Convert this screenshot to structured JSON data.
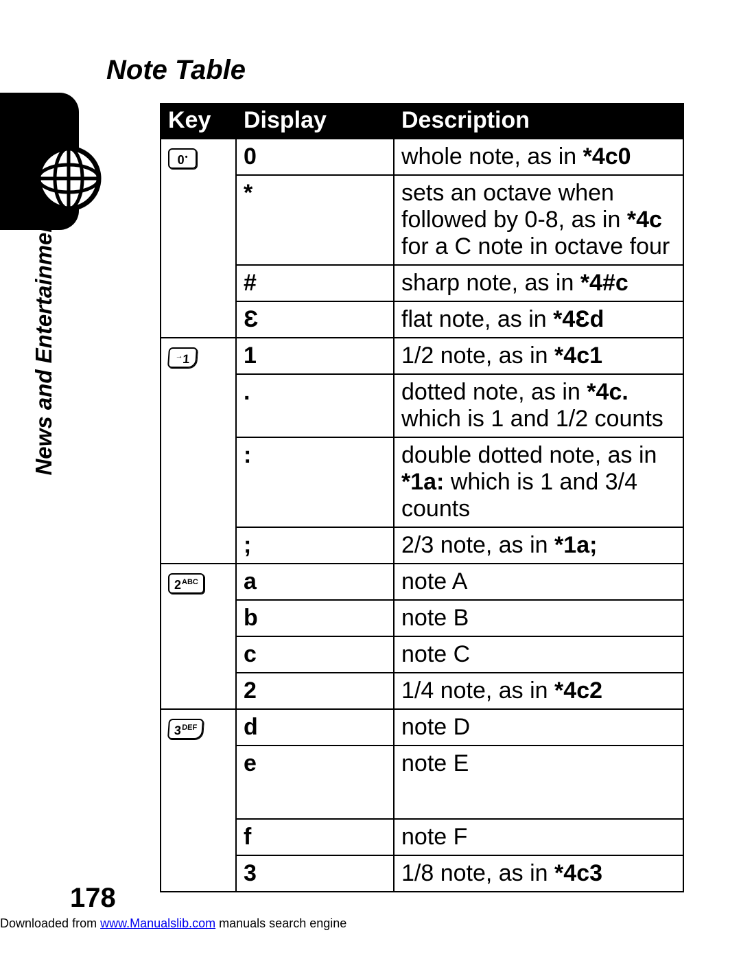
{
  "title": "Note Table",
  "sidebar_label": "News and Entertainment",
  "page_number": "178",
  "footer_prefix": "Downloaded from ",
  "footer_link_text": "www.Manualslib.com",
  "footer_suffix": " manuals search engine",
  "table": {
    "columns": [
      "Key",
      "Display",
      "Description"
    ],
    "rows": [
      {
        "key": "0",
        "key_super": "•",
        "display": "0",
        "desc_parts": [
          [
            "",
            "whole note, as in "
          ],
          [
            "b",
            "*4c0"
          ]
        ],
        "show_key": true,
        "key_style": "rect"
      },
      {
        "key": "",
        "display": "*",
        "desc_parts": [
          [
            "",
            "sets an octave when followed by 0-8, as in "
          ],
          [
            "b",
            "*4c"
          ],
          [
            "",
            " for a C note in octave four"
          ]
        ],
        "show_key": false
      },
      {
        "key": "",
        "display": "#",
        "desc_parts": [
          [
            "",
            "sharp note, as in "
          ],
          [
            "b",
            "*4#c"
          ]
        ],
        "show_key": false
      },
      {
        "key": "",
        "display": "Ɛ",
        "desc_parts": [
          [
            "",
            "flat note, as in "
          ],
          [
            "b",
            "*4Ɛd"
          ]
        ],
        "show_key": false
      },
      {
        "key": "1",
        "key_prefix": "→",
        "display": "1",
        "desc_parts": [
          [
            "",
            "1/2 note, as in "
          ],
          [
            "b",
            "*4c1"
          ]
        ],
        "show_key": true,
        "key_style": "shaped"
      },
      {
        "key": "",
        "display": ".",
        "desc_parts": [
          [
            "",
            "dotted note, as in "
          ],
          [
            "b",
            "*4c."
          ],
          [
            "",
            " which is 1 and 1/2 counts"
          ]
        ],
        "show_key": false
      },
      {
        "key": "",
        "display": ":",
        "desc_parts": [
          [
            "",
            "double dotted note, as in "
          ],
          [
            "b",
            "*1a:"
          ],
          [
            "",
            " which is 1 and 3/4 counts"
          ]
        ],
        "show_key": false
      },
      {
        "key": "",
        "display": ";",
        "desc_parts": [
          [
            "",
            "2/3 note, as in "
          ],
          [
            "b",
            "*1a;"
          ]
        ],
        "show_key": false
      },
      {
        "key": "2",
        "key_super": "ABC",
        "display": "a",
        "desc_parts": [
          [
            "",
            "note A"
          ]
        ],
        "show_key": true,
        "key_style": "rect"
      },
      {
        "key": "",
        "display": "b",
        "desc_parts": [
          [
            "",
            "note B"
          ]
        ],
        "show_key": false
      },
      {
        "key": "",
        "display": "c",
        "desc_parts": [
          [
            "",
            "note C"
          ]
        ],
        "show_key": false
      },
      {
        "key": "",
        "display": "2",
        "desc_parts": [
          [
            "",
            "1/4 note, as in "
          ],
          [
            "b",
            "*4c2"
          ]
        ],
        "show_key": false
      },
      {
        "key": "3",
        "key_super": "DEF",
        "display": "d",
        "desc_parts": [
          [
            "",
            "note D"
          ]
        ],
        "show_key": true,
        "key_style": "shaped"
      },
      {
        "key": "",
        "display": "e",
        "desc_parts": [
          [
            "",
            "note E"
          ]
        ],
        "show_key": false,
        "extra_pad": true
      },
      {
        "key": "",
        "display": "f",
        "desc_parts": [
          [
            "",
            "note F"
          ]
        ],
        "show_key": false
      },
      {
        "key": "",
        "display": "3",
        "desc_parts": [
          [
            "",
            "1/8 note, as in "
          ],
          [
            "b",
            "*4c3"
          ]
        ],
        "show_key": false
      }
    ],
    "groups": [
      4,
      4,
      4,
      4
    ]
  },
  "colors": {
    "header_bg": "#000000",
    "header_fg": "#ffffff",
    "border": "#000000",
    "link": "#0000ee"
  }
}
